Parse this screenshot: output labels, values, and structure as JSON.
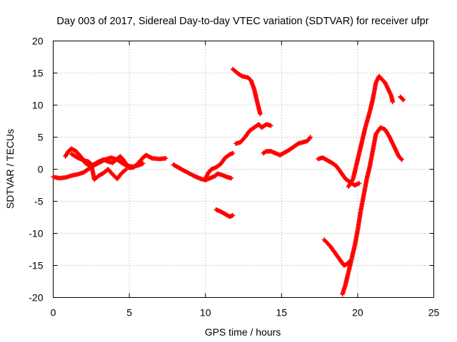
{
  "chart_data": {
    "type": "scatter",
    "title": "Day 003 of 2017, Sidereal Day-to-day VTEC variation (SDTVAR) for receiver ufpr",
    "xlabel": "GPS time / hours",
    "ylabel": "SDTVAR / TECUs",
    "xlim": [
      0,
      25
    ],
    "ylim": [
      -20,
      20
    ],
    "x_ticks": [
      0,
      5,
      10,
      15,
      20,
      25
    ],
    "y_ticks": [
      -20,
      -15,
      -10,
      -5,
      0,
      5,
      10,
      15,
      20
    ],
    "x_tick_labels": [
      "0",
      "5",
      "10",
      "15",
      "20",
      "25"
    ],
    "y_tick_labels": [
      "-20",
      "-15",
      "-10",
      "-5",
      "0",
      "5",
      "10",
      "15",
      "20"
    ],
    "grid": true,
    "marker": "plus",
    "color": "#ff0000",
    "series": [
      {
        "segments": [
          [
            [
              0.0,
              -1.2
            ],
            [
              0.4,
              -1.4
            ],
            [
              0.8,
              -1.3
            ],
            [
              1.2,
              -1.0
            ],
            [
              1.6,
              -0.8
            ],
            [
              2.0,
              -0.5
            ],
            [
              2.3,
              0.0
            ],
            [
              2.6,
              0.5
            ],
            [
              3.0,
              1.0
            ],
            [
              3.4,
              1.5
            ],
            [
              3.8,
              1.8
            ],
            [
              4.2,
              1.5
            ],
            [
              4.5,
              1.0
            ],
            [
              4.8,
              0.6
            ],
            [
              5.2,
              0.4
            ],
            [
              5.6,
              0.6
            ],
            [
              5.9,
              0.9
            ]
          ],
          [
            [
              0.8,
              2.0
            ],
            [
              1.0,
              2.8
            ],
            [
              1.2,
              3.2
            ],
            [
              1.5,
              2.8
            ],
            [
              1.8,
              2.0
            ],
            [
              2.1,
              1.0
            ],
            [
              2.4,
              0.5
            ],
            [
              2.7,
              0.8
            ],
            [
              3.0,
              1.2
            ],
            [
              3.3,
              1.5
            ],
            [
              3.6,
              1.2
            ],
            [
              3.9,
              1.0
            ],
            [
              4.2,
              1.6
            ],
            [
              4.4,
              2.0
            ],
            [
              4.6,
              1.5
            ],
            [
              4.8,
              0.8
            ],
            [
              5.0,
              0.2
            ],
            [
              5.3,
              0.3
            ],
            [
              5.6,
              1.0
            ],
            [
              5.9,
              1.8
            ],
            [
              6.1,
              2.2
            ],
            [
              6.5,
              1.7
            ],
            [
              7.0,
              1.6
            ],
            [
              7.4,
              1.7
            ]
          ],
          [
            [
              1.2,
              2.4
            ],
            [
              1.6,
              1.8
            ],
            [
              2.0,
              1.4
            ],
            [
              2.3,
              1.2
            ],
            [
              2.5,
              0.8
            ],
            [
              2.7,
              -1.6
            ],
            [
              3.0,
              -1.0
            ],
            [
              3.3,
              -0.6
            ],
            [
              3.6,
              0.0
            ],
            [
              3.9,
              -0.8
            ],
            [
              4.2,
              -1.5
            ],
            [
              4.5,
              -0.6
            ],
            [
              4.8,
              0.0
            ]
          ],
          [
            [
              7.9,
              0.7
            ],
            [
              8.2,
              0.3
            ],
            [
              8.5,
              -0.1
            ],
            [
              8.9,
              -0.6
            ],
            [
              9.3,
              -1.1
            ],
            [
              9.7,
              -1.5
            ],
            [
              10.0,
              -1.7
            ],
            [
              10.3,
              -1.4
            ],
            [
              10.6,
              -1.1
            ],
            [
              10.8,
              -0.7
            ],
            [
              11.1,
              -0.9
            ],
            [
              11.4,
              -1.2
            ],
            [
              11.7,
              -1.4
            ]
          ],
          [
            [
              10.0,
              -1.5
            ],
            [
              10.2,
              -0.5
            ],
            [
              10.4,
              0.0
            ],
            [
              10.7,
              0.3
            ],
            [
              11.0,
              0.8
            ],
            [
              11.3,
              1.8
            ],
            [
              11.6,
              2.3
            ],
            [
              11.8,
              2.5
            ]
          ],
          [
            [
              10.7,
              -6.3
            ],
            [
              11.0,
              -6.6
            ],
            [
              11.3,
              -7.0
            ],
            [
              11.6,
              -7.4
            ],
            [
              11.8,
              -7.2
            ]
          ],
          [
            [
              11.8,
              15.6
            ],
            [
              12.1,
              15.0
            ],
            [
              12.4,
              14.5
            ],
            [
              12.8,
              14.3
            ],
            [
              13.0,
              13.8
            ],
            [
              13.2,
              12.5
            ],
            [
              13.4,
              10.5
            ],
            [
              13.6,
              8.6
            ]
          ],
          [
            [
              12.0,
              4.0
            ],
            [
              12.3,
              4.2
            ],
            [
              12.6,
              5.0
            ],
            [
              12.9,
              6.0
            ],
            [
              13.2,
              6.5
            ],
            [
              13.5,
              7.0
            ],
            [
              13.7,
              6.5
            ],
            [
              14.0,
              7.0
            ],
            [
              14.3,
              6.8
            ]
          ],
          [
            [
              13.8,
              2.5
            ],
            [
              14.0,
              2.8
            ],
            [
              14.3,
              2.8
            ],
            [
              14.6,
              2.5
            ],
            [
              14.9,
              2.2
            ],
            [
              15.2,
              2.6
            ],
            [
              15.5,
              3.0
            ],
            [
              15.8,
              3.5
            ],
            [
              16.1,
              4.0
            ],
            [
              16.4,
              4.2
            ],
            [
              16.7,
              4.4
            ],
            [
              16.9,
              5.0
            ]
          ],
          [
            [
              17.4,
              1.6
            ],
            [
              17.7,
              1.8
            ],
            [
              18.0,
              1.4
            ],
            [
              18.3,
              1.0
            ],
            [
              18.6,
              0.5
            ],
            [
              18.9,
              -0.5
            ],
            [
              19.2,
              -1.5
            ],
            [
              19.5,
              -2.0
            ],
            [
              19.8,
              -2.5
            ],
            [
              20.1,
              -2.2
            ]
          ],
          [
            [
              17.8,
              -11.0
            ],
            [
              18.2,
              -12.0
            ],
            [
              18.5,
              -13.0
            ],
            [
              18.8,
              -14.0
            ],
            [
              19.1,
              -15.0
            ],
            [
              19.3,
              -14.8
            ],
            [
              19.5,
              -14.3
            ]
          ],
          [
            [
              19.4,
              -2.7
            ],
            [
              19.7,
              -1.5
            ],
            [
              19.9,
              0.5
            ],
            [
              20.1,
              2.5
            ],
            [
              20.3,
              4.5
            ],
            [
              20.5,
              6.5
            ],
            [
              20.8,
              9.0
            ],
            [
              21.0,
              11.0
            ],
            [
              21.2,
              13.5
            ],
            [
              21.4,
              14.5
            ],
            [
              21.6,
              14.0
            ],
            [
              21.8,
              13.5
            ],
            [
              22.0,
              12.5
            ],
            [
              22.2,
              11.5
            ],
            [
              22.3,
              10.5
            ]
          ],
          [
            [
              22.8,
              11.3
            ],
            [
              23.0,
              10.8
            ]
          ],
          [
            [
              19.0,
              -19.5
            ],
            [
              19.2,
              -18.0
            ],
            [
              19.4,
              -16.0
            ],
            [
              19.6,
              -14.0
            ],
            [
              19.8,
              -12.0
            ],
            [
              20.0,
              -9.5
            ],
            [
              20.2,
              -6.5
            ],
            [
              20.4,
              -4.0
            ],
            [
              20.6,
              -1.5
            ],
            [
              20.8,
              0.5
            ],
            [
              21.0,
              3.0
            ],
            [
              21.2,
              5.5
            ],
            [
              21.5,
              6.5
            ],
            [
              21.8,
              6.2
            ],
            [
              22.1,
              5.0
            ],
            [
              22.4,
              3.5
            ],
            [
              22.7,
              2.0
            ],
            [
              22.9,
              1.5
            ]
          ]
        ]
      }
    ]
  }
}
